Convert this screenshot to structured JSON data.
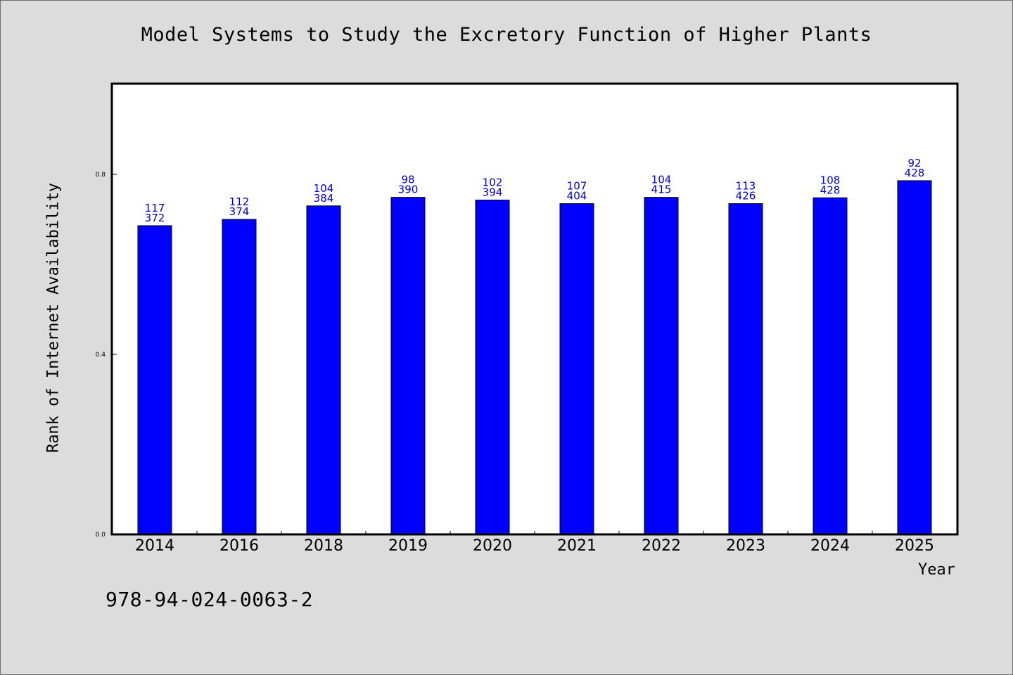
{
  "chart_data": {
    "type": "bar",
    "title": "Model Systems to Study the Excretory Function of Higher Plants",
    "xlabel": "Year",
    "ylabel": "Rank of Internet Availability",
    "categories": [
      "2014",
      "2016",
      "2018",
      "2019",
      "2020",
      "2021",
      "2022",
      "2023",
      "2024",
      "2025"
    ],
    "values": [
      0.686,
      0.7,
      0.73,
      0.749,
      0.743,
      0.735,
      0.749,
      0.735,
      0.748,
      0.786
    ],
    "data_labels_top": [
      "117",
      "112",
      "104",
      "98",
      "102",
      "107",
      "104",
      "113",
      "108",
      "92"
    ],
    "data_labels_bottom": [
      "372",
      "374",
      "384",
      "390",
      "394",
      "404",
      "415",
      "426",
      "428",
      "428"
    ],
    "ylim": [
      0.0,
      1.0
    ],
    "yticks": [
      0.0,
      0.4,
      0.8
    ],
    "ytick_labels": [
      "0.0",
      "0.4",
      "0.8"
    ],
    "bar_color": "#0000ff",
    "label_color": "#0000cc",
    "grid": false,
    "legend": "none"
  },
  "footer": {
    "isbn": "978-94-024-0063-2"
  }
}
